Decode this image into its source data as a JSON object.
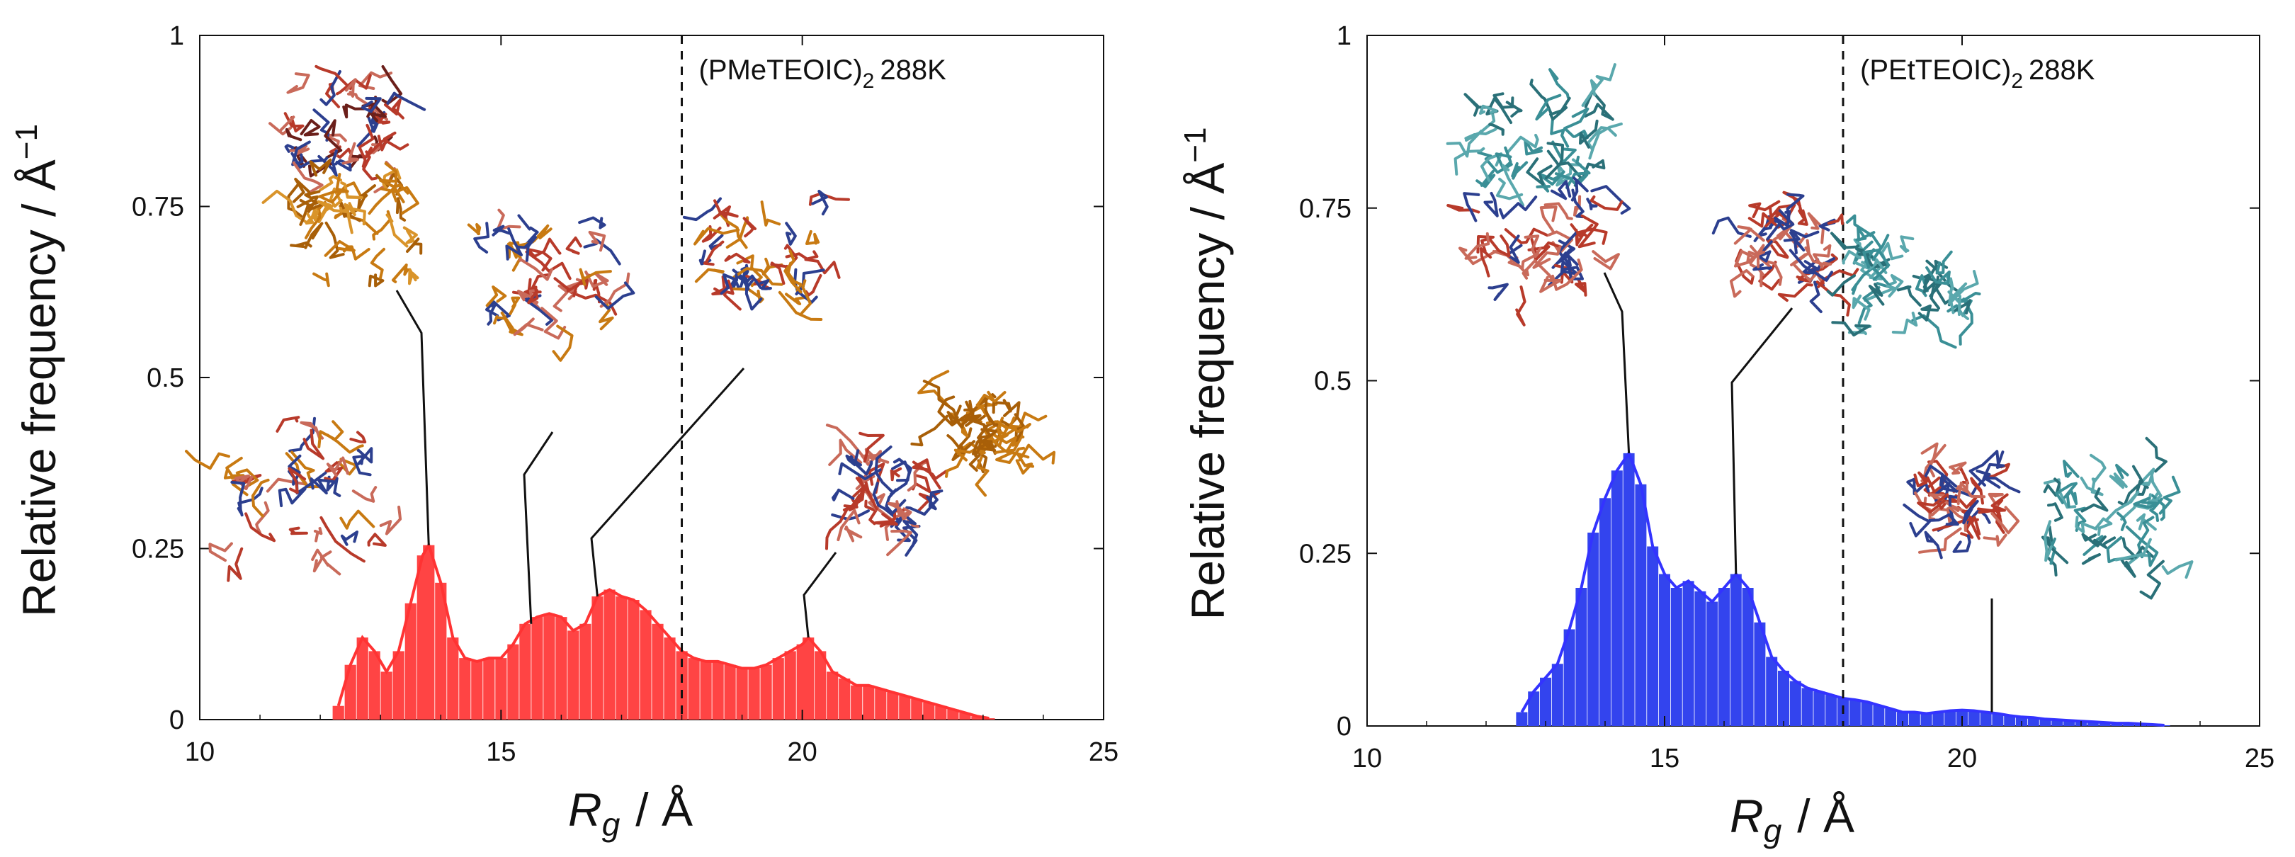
{
  "chart_data": [
    {
      "type": "bar",
      "title": "",
      "annotation": "(PMeTEOIC)",
      "annotation_subscript": "2",
      "annotation_temp": "288K",
      "xlabel_var": "R",
      "xlabel_sub": "g",
      "xlabel_unit": "/ Å",
      "ylabel": "Relative frequency / Å",
      "ylabel_sup": "−1",
      "xlim": [
        10,
        25
      ],
      "ylim": [
        0,
        1
      ],
      "xticks": [
        "10",
        "15",
        "20",
        "25"
      ],
      "yticks": [
        "0",
        "0.25",
        "0.5",
        "0.75",
        "1"
      ],
      "color": "#ff3333",
      "vline_x": 18.0,
      "pointers": [
        13.8,
        15.5,
        16.6,
        20.1
      ],
      "series": [
        {
          "name": "(PMeTEOIC)2 288K",
          "x": [
            12.3,
            12.5,
            12.7,
            12.9,
            13.1,
            13.3,
            13.5,
            13.7,
            13.8,
            14.0,
            14.2,
            14.4,
            14.6,
            14.8,
            15.0,
            15.2,
            15.4,
            15.6,
            15.8,
            16.0,
            16.2,
            16.4,
            16.6,
            16.8,
            17.0,
            17.2,
            17.4,
            17.6,
            17.8,
            18.0,
            18.2,
            18.4,
            18.6,
            18.8,
            19.0,
            19.2,
            19.4,
            19.6,
            19.8,
            20.0,
            20.1,
            20.3,
            20.5,
            20.7,
            20.9,
            21.1,
            21.3,
            21.5,
            21.7,
            21.9,
            22.1,
            22.3,
            22.5,
            22.7,
            22.9,
            23.1
          ],
          "values": [
            0.02,
            0.08,
            0.12,
            0.1,
            0.07,
            0.1,
            0.17,
            0.24,
            0.255,
            0.2,
            0.12,
            0.09,
            0.085,
            0.09,
            0.09,
            0.11,
            0.14,
            0.15,
            0.155,
            0.15,
            0.13,
            0.14,
            0.18,
            0.19,
            0.18,
            0.175,
            0.16,
            0.14,
            0.12,
            0.1,
            0.09,
            0.085,
            0.085,
            0.08,
            0.075,
            0.075,
            0.08,
            0.09,
            0.1,
            0.11,
            0.12,
            0.1,
            0.07,
            0.06,
            0.05,
            0.05,
            0.045,
            0.04,
            0.035,
            0.03,
            0.025,
            0.02,
            0.015,
            0.01,
            0.005,
            0.002
          ]
        }
      ]
    },
    {
      "type": "bar",
      "title": "",
      "annotation": "(PEtTEOIC)",
      "annotation_subscript": "2",
      "annotation_temp": "288K",
      "xlabel_var": "R",
      "xlabel_sub": "g",
      "xlabel_unit": "/ Å",
      "ylabel": "Relative frequency / Å",
      "ylabel_sup": "−1",
      "xlim": [
        10,
        25
      ],
      "ylim": [
        0,
        1
      ],
      "xticks": [
        "10",
        "15",
        "20",
        "25"
      ],
      "yticks": [
        "0",
        "0.25",
        "0.5",
        "0.75",
        "1"
      ],
      "color": "#3333ff",
      "vline_x": 18.0,
      "pointers": [
        14.4,
        16.2,
        20.5
      ],
      "series": [
        {
          "name": "(PEtTEOIC)2 288K",
          "x": [
            12.6,
            12.8,
            13.0,
            13.2,
            13.4,
            13.6,
            13.8,
            14.0,
            14.2,
            14.4,
            14.6,
            14.8,
            15.0,
            15.2,
            15.4,
            15.6,
            15.8,
            16.0,
            16.2,
            16.4,
            16.6,
            16.8,
            17.0,
            17.2,
            17.4,
            17.6,
            17.8,
            18.0,
            18.2,
            18.4,
            18.6,
            18.8,
            19.0,
            19.2,
            19.4,
            19.6,
            19.8,
            20.0,
            20.2,
            20.4,
            20.6,
            20.8,
            21.0,
            21.2,
            21.4,
            21.6,
            21.8,
            22.0,
            22.2,
            22.4,
            22.6,
            22.8,
            23.0,
            23.2,
            23.4
          ],
          "values": [
            0.02,
            0.05,
            0.07,
            0.09,
            0.14,
            0.2,
            0.28,
            0.33,
            0.37,
            0.395,
            0.35,
            0.26,
            0.22,
            0.2,
            0.21,
            0.195,
            0.18,
            0.2,
            0.22,
            0.2,
            0.15,
            0.1,
            0.08,
            0.065,
            0.055,
            0.05,
            0.045,
            0.04,
            0.038,
            0.035,
            0.03,
            0.025,
            0.02,
            0.02,
            0.018,
            0.02,
            0.022,
            0.023,
            0.022,
            0.02,
            0.018,
            0.015,
            0.013,
            0.012,
            0.01,
            0.009,
            0.008,
            0.007,
            0.006,
            0.005,
            0.004,
            0.004,
            0.003,
            0.002,
            0.001
          ]
        }
      ]
    }
  ]
}
